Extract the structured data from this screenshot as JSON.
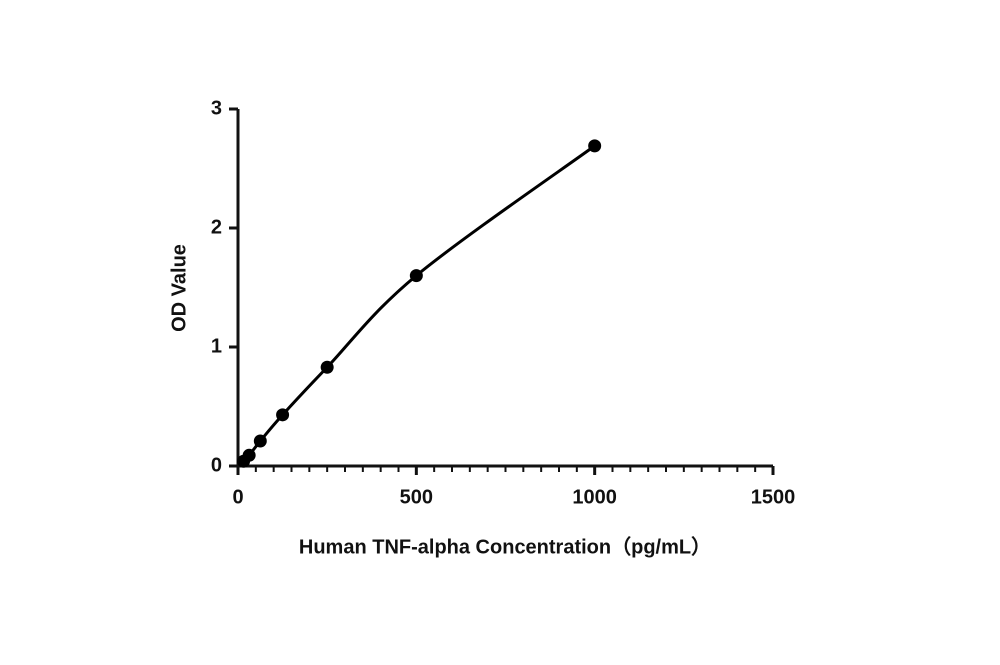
{
  "chart_data": {
    "type": "scatter",
    "x_label": "Human TNF-alpha Concentration（pg/mL）",
    "y_label": "OD Value",
    "x": [
      15.6,
      31.25,
      62.5,
      125,
      250,
      500,
      1000
    ],
    "series": [
      {
        "color": "#000000",
        "values": [
          0.04,
          0.09,
          0.21,
          0.43,
          0.83,
          1.6,
          2.69
        ]
      }
    ],
    "fit_line": true,
    "xlim": [
      0,
      1500
    ],
    "xticks": [
      0,
      500,
      1000,
      1500
    ],
    "ylim": [
      0,
      3
    ],
    "yticks": [
      0,
      1,
      2,
      3
    ]
  }
}
